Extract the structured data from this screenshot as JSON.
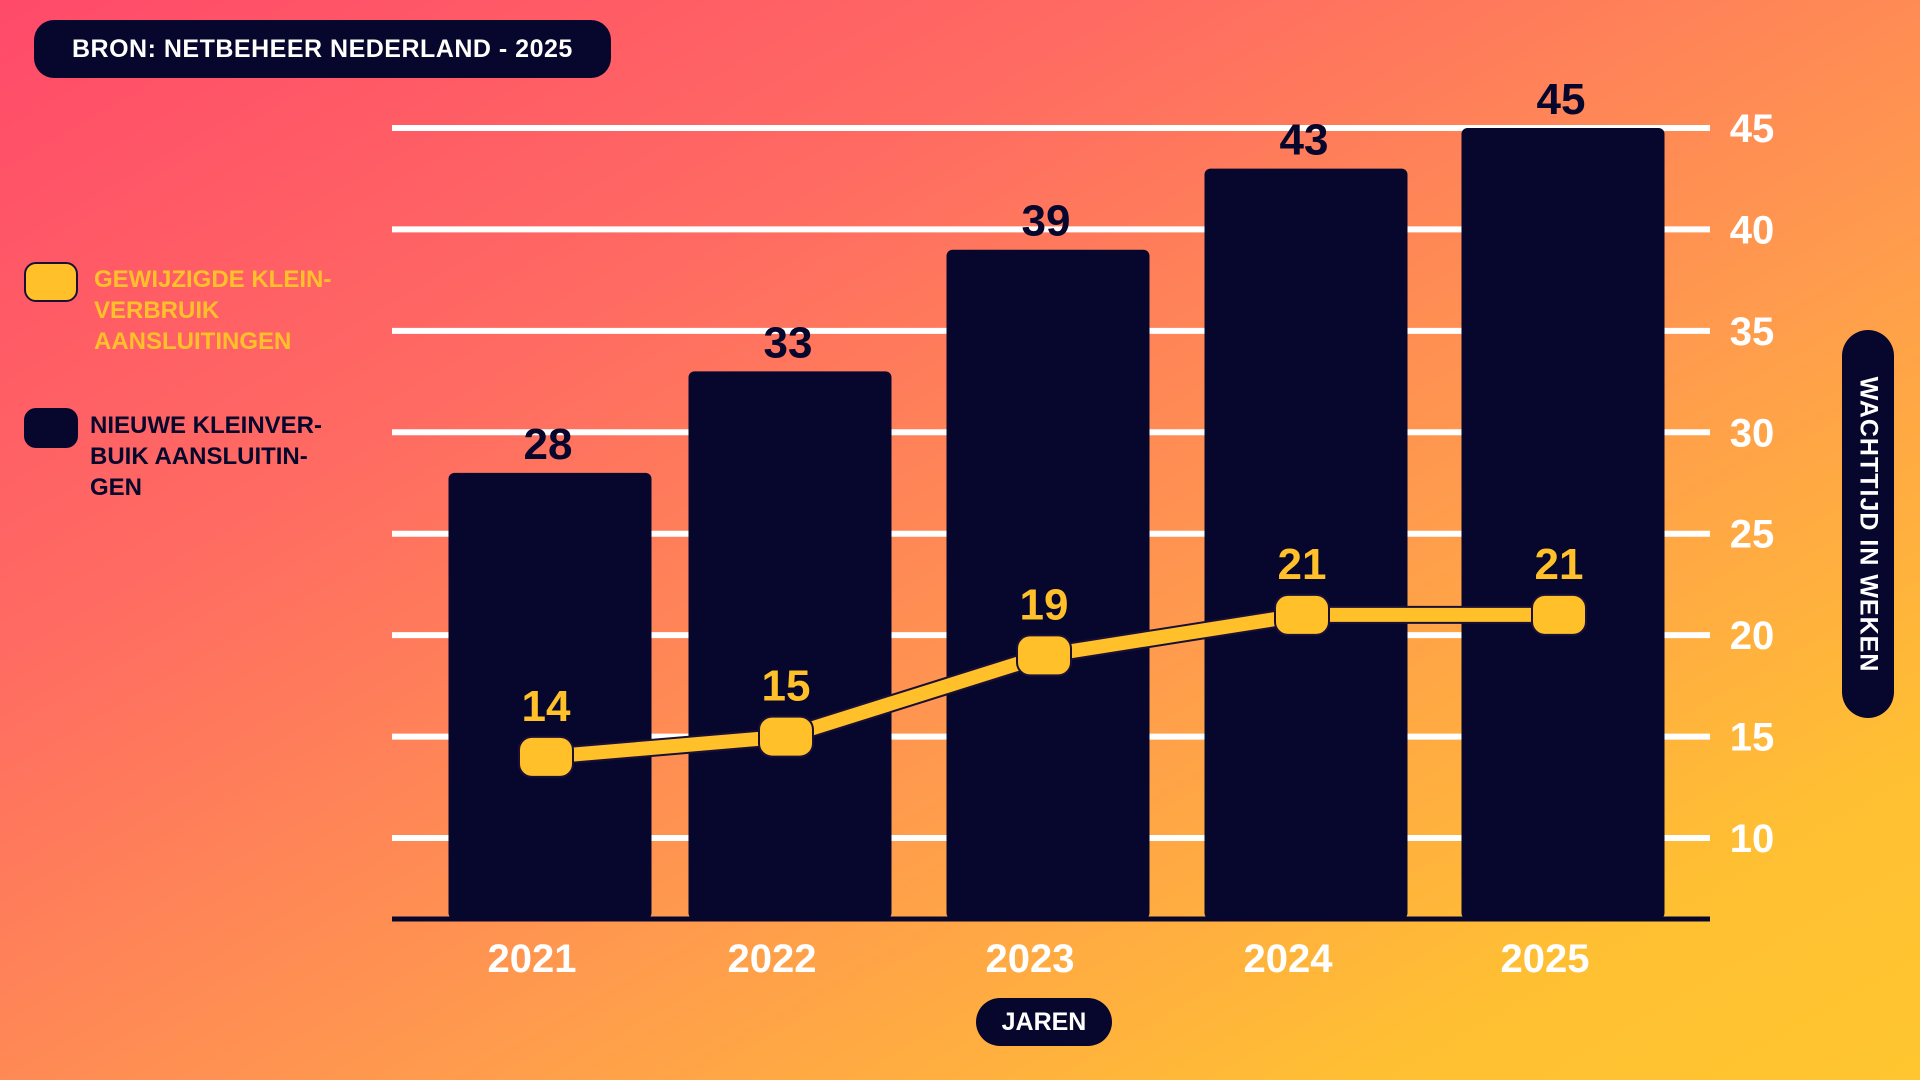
{
  "source": "BRON: NETBEHEER NEDERLAND - 2025",
  "legend": {
    "line_label": "GEWIJZIGDE KLEIN-VERBRUIK AANSLUITINGEN",
    "bar_label": "NIEUWE KLEINVER-BUIK AANSLUITIN-GEN"
  },
  "colors": {
    "bar": "#07072e",
    "line": "#ffc02a",
    "grid": "#ffffff"
  },
  "chart_data": {
    "type": "bar",
    "title": "",
    "xlabel": "JAREN",
    "ylabel": "WACHTTIJD IN WEKEN",
    "categories": [
      "2021",
      "2022",
      "2023",
      "2024",
      "2025"
    ],
    "series": [
      {
        "name": "NIEUWE KLEINVERBUIK AANSLUITINGEN",
        "type": "bar",
        "values": [
          28,
          33,
          39,
          43,
          45
        ]
      },
      {
        "name": "GEWIJZIGDE KLEINVERBRUIK AANSLUITINGEN",
        "type": "line",
        "values": [
          14,
          15,
          19,
          21,
          21
        ]
      }
    ],
    "y_ticks": [
      10,
      15,
      20,
      25,
      30,
      35,
      40,
      45
    ],
    "ylim": [
      6,
      46
    ],
    "grid": true,
    "legend_position": "left"
  }
}
